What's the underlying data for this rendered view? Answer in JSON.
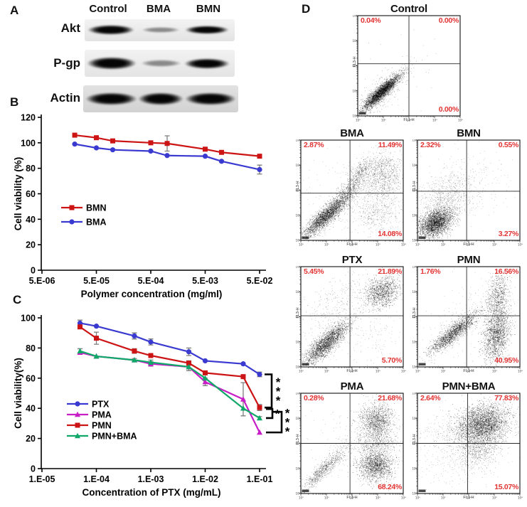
{
  "colors": {
    "red": "#cc1414",
    "blue": "#3a3ad1",
    "magenta": "#c71ec7",
    "green": "#0fa868",
    "pct": "#e23333",
    "err_gray": "#7d7d7d",
    "axis": "#000000"
  },
  "panelA": {
    "label": "A",
    "lanes": [
      "Control",
      "BMA",
      "BMN"
    ],
    "rows": [
      {
        "label": "Akt",
        "bands": [
          "strong",
          "faint",
          "strong"
        ]
      },
      {
        "label": "P-gp",
        "bands": [
          "strong",
          "faint",
          "strong"
        ]
      },
      {
        "label": "Actin",
        "bands": [
          "strong",
          "strong",
          "strong"
        ]
      }
    ]
  },
  "panelB": {
    "label": "B"
  },
  "panelC": {
    "label": "C"
  },
  "panelD": {
    "label": "D",
    "decade_labels": [
      "10⁰",
      "10¹",
      "10²",
      "10³",
      "10⁴"
    ]
  },
  "chart_data": [
    {
      "id": "polymer-viability",
      "type": "line",
      "xlabel": "Polymer concentration (mg/ml)",
      "ylabel": "Cell viability (%)",
      "xscale": "log",
      "xlim": [
        5e-06,
        0.06
      ],
      "ylim": [
        0,
        120
      ],
      "yticks": [
        0,
        20,
        40,
        60,
        80,
        100,
        120
      ],
      "xticks": {
        "values": [
          5e-06,
          5e-05,
          0.0005,
          0.005,
          0.05
        ],
        "labels": [
          "5.E-06",
          "5.E-05",
          "5.E-04",
          "5.E-03",
          "5.E-02"
        ]
      },
      "x": [
        2e-05,
        5e-05,
        0.0001,
        0.0005,
        0.001,
        0.005,
        0.01,
        0.05
      ],
      "series": [
        {
          "name": "BMN",
          "color": "red",
          "marker": "square",
          "values": [
            106,
            104,
            101.5,
            100,
            99.5,
            95,
            92.5,
            89.5
          ],
          "err": [
            0,
            0,
            0,
            0,
            6,
            0,
            0,
            0
          ]
        },
        {
          "name": "BMA",
          "color": "blue",
          "marker": "circle",
          "values": [
            99,
            96,
            94.5,
            93.5,
            90,
            89.5,
            85.5,
            79
          ],
          "err": [
            0,
            0,
            0,
            0,
            0,
            0,
            0,
            3.5
          ]
        }
      ],
      "legend": [
        "BMN",
        "BMA"
      ],
      "legend_pos": "center-left",
      "grid": false
    },
    {
      "id": "ptx-viability",
      "type": "line",
      "xlabel": "Concentration of PTX (mg/mL)",
      "ylabel": "Cell viability(%)",
      "xscale": "log",
      "xlim": [
        1e-05,
        0.13
      ],
      "ylim": [
        0,
        100
      ],
      "yticks": [
        0,
        20,
        40,
        60,
        80,
        100
      ],
      "xticks": {
        "values": [
          1e-05,
          0.0001,
          0.001,
          0.01,
          0.1
        ],
        "labels": [
          "1.E-05",
          "1.E-04",
          "1.E-03",
          "1.E-02",
          "1.E-01"
        ]
      },
      "x": [
        5e-05,
        0.0001,
        0.0005,
        0.001,
        0.005,
        0.01,
        0.05,
        0.1
      ],
      "series": [
        {
          "name": "PTX",
          "color": "blue",
          "marker": "circle",
          "values": [
            96.5,
            94.5,
            88,
            84,
            77.5,
            71.5,
            69.5,
            62.5
          ],
          "err": [
            2,
            0,
            2,
            2,
            2.5,
            0,
            0,
            1.5
          ]
        },
        {
          "name": "PMA",
          "color": "magenta",
          "marker": "triangle",
          "values": [
            77,
            74.5,
            72,
            69.5,
            67.5,
            57.5,
            46,
            24
          ],
          "err": [
            0,
            0,
            0,
            1.5,
            0,
            2.5,
            11,
            0
          ]
        },
        {
          "name": "PMN",
          "color": "red",
          "marker": "square",
          "values": [
            94,
            86.5,
            78,
            75,
            70,
            63.5,
            61,
            40.5
          ],
          "err": [
            0,
            4,
            1.5,
            0,
            1.5,
            0,
            0,
            2
          ]
        },
        {
          "name": "PMN+BMA",
          "color": "green",
          "marker": "triangle",
          "values": [
            78,
            74.5,
            72,
            70.5,
            67.5,
            60,
            40,
            33.5
          ],
          "err": [
            1.5,
            0,
            1,
            1.5,
            2.5,
            0,
            0,
            1
          ]
        }
      ],
      "legend": [
        "PTX",
        "PMA",
        "PMN",
        "PMN+BMA"
      ],
      "legend_pos": "lower-left",
      "grid": false,
      "significance": [
        {
          "series_a": "PTX",
          "series_b": "PMN",
          "label": "***"
        },
        {
          "series_a": "PMN",
          "series_b": "PMN+BMA",
          "label": "*"
        },
        {
          "series_a": "PMN",
          "series_b": "PMA",
          "label": "***"
        }
      ]
    },
    {
      "id": "Control",
      "type": "scatter",
      "title": "Control",
      "xlabel": "FL1-H",
      "ylabel": "FL3-H",
      "quadrant_pcts": {
        "upper_left": "0.04%",
        "upper_right": "0.00%",
        "lower_right": "0.00%"
      },
      "cross": [
        0.5,
        0.48
      ],
      "clusters": [
        {
          "cx": 0.23,
          "cy": 0.76,
          "s1": 0.12,
          "s2": 0.026,
          "rot": -44,
          "n": 2800
        },
        {
          "cx": 0.23,
          "cy": 0.76,
          "s1": 0.17,
          "s2": 0.05,
          "rot": -44,
          "n": 500,
          "a": 0.4
        },
        {
          "cx": 0.3,
          "cy": 0.7,
          "s1": 0.3,
          "s2": 0.18,
          "rot": -44,
          "n": 70,
          "a": 0.35
        }
      ]
    },
    {
      "id": "BMA",
      "type": "scatter",
      "title": "BMA",
      "xlabel": "FL1-H",
      "ylabel": "FL3-H",
      "quadrant_pcts": {
        "upper_left": "2.87%",
        "upper_right": "11.49%",
        "lower_right": "14.08%"
      },
      "cross": [
        0.48,
        0.53
      ],
      "clusters": [
        {
          "cx": 0.25,
          "cy": 0.75,
          "s1": 0.15,
          "s2": 0.035,
          "rot": -43,
          "n": 2400
        },
        {
          "cx": 0.47,
          "cy": 0.5,
          "s1": 0.12,
          "s2": 0.04,
          "rot": -47,
          "n": 500,
          "a": 0.45
        },
        {
          "cx": 0.58,
          "cy": 0.3,
          "s1": 0.08,
          "s2": 0.035,
          "rot": -50,
          "n": 250,
          "a": 0.45
        },
        {
          "cx": 0.8,
          "cy": 0.36,
          "s1": 0.12,
          "s2": 0.1,
          "rot": -70,
          "n": 900,
          "a": 0.4
        },
        {
          "cx": 0.74,
          "cy": 0.74,
          "s1": 0.12,
          "s2": 0.09,
          "rot": 0,
          "n": 400,
          "a": 0.35
        },
        {
          "cx": 0.5,
          "cy": 0.55,
          "s1": 0.33,
          "s2": 0.25,
          "rot": -40,
          "n": 260,
          "a": 0.3
        }
      ]
    },
    {
      "id": "BMN",
      "type": "scatter",
      "title": "BMN",
      "xlabel": "FL1-H",
      "ylabel": "FL3-H",
      "quadrant_pcts": {
        "upper_left": "2.32%",
        "upper_right": "0.55%",
        "lower_right": "3.27%"
      },
      "cross": [
        0.48,
        0.51
      ],
      "clusters": [
        {
          "cx": 0.18,
          "cy": 0.82,
          "s1": 0.09,
          "s2": 0.06,
          "rot": -35,
          "n": 2600
        },
        {
          "cx": 0.28,
          "cy": 0.58,
          "s1": 0.16,
          "s2": 0.12,
          "rot": -30,
          "n": 700,
          "a": 0.35
        },
        {
          "cx": 0.45,
          "cy": 0.45,
          "s1": 0.25,
          "s2": 0.2,
          "rot": -25,
          "n": 250,
          "a": 0.3
        }
      ]
    },
    {
      "id": "PTX",
      "type": "scatter",
      "title": "PTX",
      "xlabel": "FL1-H",
      "ylabel": "FL3-H",
      "quadrant_pcts": {
        "upper_left": "5.45%",
        "upper_right": "21.89%",
        "lower_right": "5.70%"
      },
      "cross": [
        0.48,
        0.49
      ],
      "clusters": [
        {
          "cx": 0.25,
          "cy": 0.76,
          "s1": 0.14,
          "s2": 0.042,
          "rot": -44,
          "n": 2200
        },
        {
          "cx": 0.79,
          "cy": 0.25,
          "s1": 0.09,
          "s2": 0.07,
          "rot": -35,
          "n": 1100
        },
        {
          "cx": 0.35,
          "cy": 0.38,
          "s1": 0.2,
          "s2": 0.12,
          "rot": -40,
          "n": 300,
          "a": 0.35
        },
        {
          "cx": 0.62,
          "cy": 0.68,
          "s1": 0.22,
          "s2": 0.15,
          "rot": 0,
          "n": 180,
          "a": 0.3
        }
      ]
    },
    {
      "id": "PMN",
      "type": "scatter",
      "title": "PMN",
      "xlabel": "FL1-H",
      "ylabel": "FL3-H",
      "quadrant_pcts": {
        "upper_left": "1.76%",
        "upper_right": "16.56%",
        "lower_right": "40.95%"
      },
      "cross": [
        0.48,
        0.49
      ],
      "clusters": [
        {
          "cx": 0.35,
          "cy": 0.66,
          "s1": 0.15,
          "s2": 0.035,
          "rot": -40,
          "n": 1700
        },
        {
          "cx": 0.78,
          "cy": 0.32,
          "s1": 0.13,
          "s2": 0.05,
          "rot": -85,
          "n": 800,
          "a": 0.45
        },
        {
          "cx": 0.77,
          "cy": 0.68,
          "s1": 0.13,
          "s2": 0.06,
          "rot": -80,
          "n": 1500
        },
        {
          "cx": 0.55,
          "cy": 0.5,
          "s1": 0.3,
          "s2": 0.2,
          "rot": -40,
          "n": 250,
          "a": 0.3
        }
      ]
    },
    {
      "id": "PMA",
      "type": "scatter",
      "title": "PMA",
      "xlabel": "FL1-H",
      "ylabel": "FL3-H",
      "quadrant_pcts": {
        "upper_left": "0.28%",
        "upper_right": "21.68%",
        "lower_right": "68.24%"
      },
      "cross": [
        0.48,
        0.5
      ],
      "clusters": [
        {
          "cx": 0.2,
          "cy": 0.78,
          "s1": 0.13,
          "s2": 0.028,
          "rot": -44,
          "n": 550,
          "a": 0.45
        },
        {
          "cx": 0.38,
          "cy": 0.6,
          "s1": 0.14,
          "s2": 0.05,
          "rot": -44,
          "n": 250,
          "a": 0.35
        },
        {
          "cx": 0.73,
          "cy": 0.28,
          "s1": 0.09,
          "s2": 0.085,
          "rot": -75,
          "n": 1200
        },
        {
          "cx": 0.73,
          "cy": 0.72,
          "s1": 0.085,
          "s2": 0.08,
          "rot": 0,
          "n": 1500
        },
        {
          "cx": 0.73,
          "cy": 0.5,
          "s1": 0.05,
          "s2": 0.1,
          "rot": -90,
          "n": 350,
          "a": 0.45
        },
        {
          "cx": 0.5,
          "cy": 0.5,
          "s1": 0.35,
          "s2": 0.25,
          "rot": 0,
          "n": 160,
          "a": 0.3
        }
      ]
    },
    {
      "id": "PMN+BMA",
      "type": "scatter",
      "title": "PMN+BMA",
      "xlabel": "FL1-H",
      "ylabel": "FL3-H",
      "quadrant_pcts": {
        "upper_left": "2.64%",
        "upper_right": "77.83%",
        "lower_right": "15.07%"
      },
      "cross": [
        0.49,
        0.5
      ],
      "clusters": [
        {
          "cx": 0.63,
          "cy": 0.31,
          "s1": 0.13,
          "s2": 0.095,
          "rot": -20,
          "n": 3000
        },
        {
          "cx": 0.6,
          "cy": 0.55,
          "s1": 0.12,
          "s2": 0.085,
          "rot": -25,
          "n": 650,
          "a": 0.4
        },
        {
          "cx": 0.3,
          "cy": 0.38,
          "s1": 0.18,
          "s2": 0.12,
          "rot": 0,
          "n": 280,
          "a": 0.3
        },
        {
          "cx": 0.35,
          "cy": 0.72,
          "s1": 0.22,
          "s2": 0.12,
          "rot": 0,
          "n": 220,
          "a": 0.3
        }
      ]
    }
  ]
}
